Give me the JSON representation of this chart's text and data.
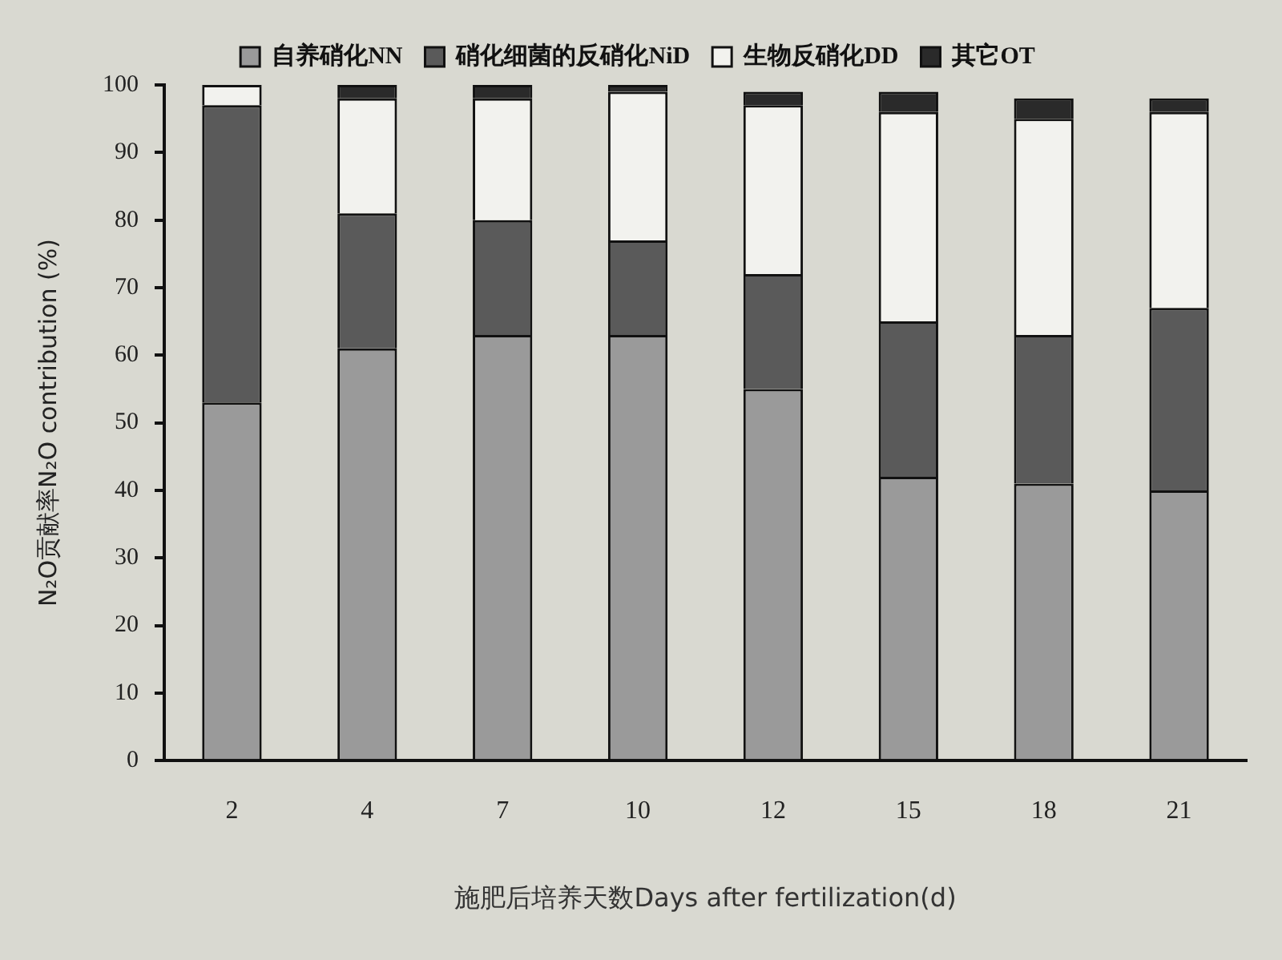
{
  "chart_data": {
    "type": "bar",
    "stacked": true,
    "legend": "top",
    "xlabel": "施肥后培养天数Days after fertilization(d)",
    "ylabel": "N₂O贡献率N₂O contribution (%)",
    "categories": [
      "2",
      "4",
      "7",
      "10",
      "12",
      "15",
      "18",
      "21"
    ],
    "series": [
      {
        "name": "自养硝化NN",
        "color": "#9a9a9a",
        "values": [
          53,
          61,
          63,
          63,
          55,
          42,
          41,
          40
        ]
      },
      {
        "name": "硝化细菌的反硝化NiD",
        "color": "#5a5a5a",
        "values": [
          44,
          20,
          17,
          14,
          17,
          23,
          22,
          27
        ]
      },
      {
        "name": "生物反硝化DD",
        "color": "#f2f2ee",
        "values": [
          3,
          17,
          18,
          22,
          25,
          31,
          32,
          29
        ]
      },
      {
        "name": "其它OT",
        "color": "#2a2a2a",
        "values": [
          0,
          2,
          2,
          1,
          2,
          3,
          3,
          2
        ]
      }
    ],
    "ylim": [
      0,
      100
    ],
    "yticks": [
      0,
      10,
      20,
      30,
      40,
      50,
      60,
      70,
      80,
      90,
      100
    ]
  }
}
